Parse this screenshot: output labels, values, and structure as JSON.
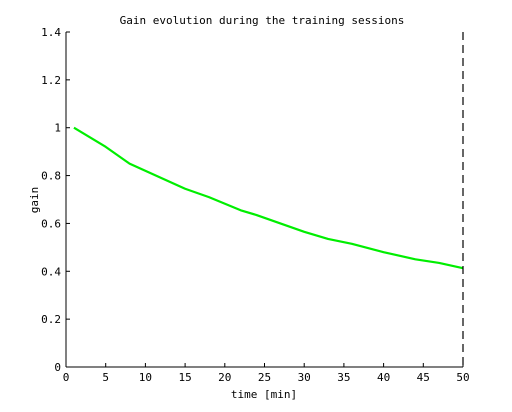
{
  "chart_data": {
    "type": "line",
    "title": "Gain evolution during the training sessions",
    "xlabel": "time [min]",
    "ylabel": "gain",
    "xlim": [
      0,
      50
    ],
    "ylim": [
      0,
      1.4
    ],
    "x_ticks": [
      "0",
      "5",
      "10",
      "15",
      "20",
      "25",
      "30",
      "35",
      "40",
      "45",
      "50"
    ],
    "y_ticks": [
      "0",
      "0.2",
      "0.4",
      "0.6",
      "0.8",
      "1",
      "1.2",
      "1.4"
    ],
    "grid": false,
    "series": [
      {
        "color": "#00ee00",
        "x": [
          1,
          5,
          8,
          12,
          15,
          18,
          22,
          24,
          27,
          30,
          33,
          36,
          40,
          44,
          47,
          50
        ],
        "y": [
          1.0,
          0.92,
          0.85,
          0.79,
          0.745,
          0.71,
          0.655,
          0.635,
          0.6,
          0.565,
          0.535,
          0.515,
          0.48,
          0.45,
          0.435,
          0.413
        ]
      }
    ],
    "vertical_line": {
      "x": 50,
      "style": "dashed",
      "color": "#000000"
    }
  }
}
